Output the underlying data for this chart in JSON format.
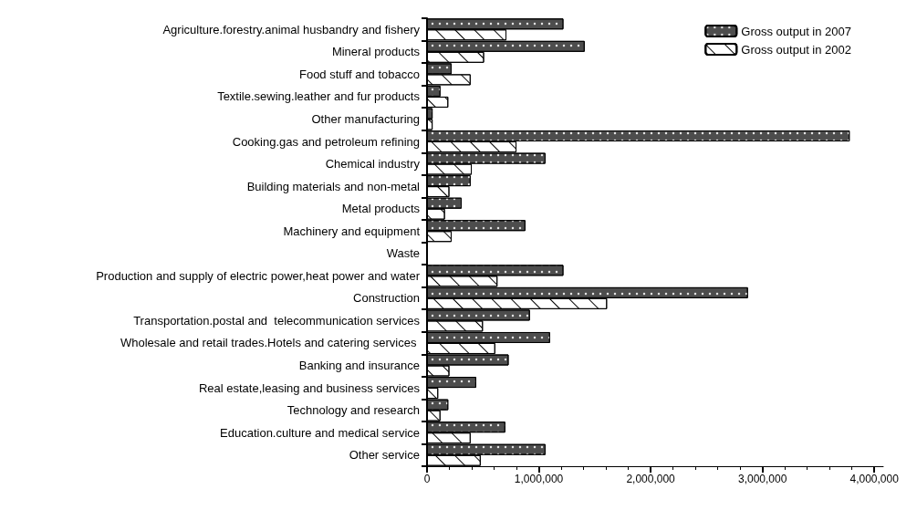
{
  "chart_data": {
    "type": "bar",
    "orientation": "horizontal",
    "categories": [
      "Agriculture.forestry.animal husbandry and fishery",
      "Mineral products",
      "Food stuff and tobacco",
      "Textile.sewing.leather and fur products",
      "Other manufacturing",
      "Cooking.gas and petroleum refining",
      "Chemical industry",
      "Building materials and non-metal",
      "Metal products",
      "Machinery and equipment",
      "Waste",
      "Production and supply of electric power,heat power and water",
      "Construction",
      "Transportation.postal and  telecommunication services",
      "Wholesale and retail trades.Hotels and catering services ",
      "Banking and insurance",
      "Real estate,leasing and business services",
      "Technology and research",
      "Education.culture and medical service",
      "Other service"
    ],
    "series": [
      {
        "name": "Gross output in 2007",
        "color": "#4d4d4d",
        "values": [
          1220000,
          1410000,
          220000,
          120000,
          50000,
          3780000,
          1060000,
          390000,
          310000,
          880000,
          0,
          1220000,
          2870000,
          920000,
          1100000,
          730000,
          440000,
          190000,
          700000,
          1060000
        ]
      },
      {
        "name": "Gross output in 2002",
        "color": "#ffffff",
        "values": [
          710000,
          510000,
          390000,
          190000,
          50000,
          800000,
          400000,
          200000,
          160000,
          220000,
          0,
          630000,
          1610000,
          500000,
          610000,
          200000,
          100000,
          120000,
          390000,
          480000
        ]
      }
    ],
    "xlim": [
      0,
      4080000
    ],
    "xticks": [
      0,
      {
        "value": 1000000,
        "label": "1,000,000"
      },
      {
        "value": 2000000,
        "label": "2,000,000"
      },
      {
        "value": 3000000,
        "label": "3,000,000"
      },
      {
        "value": 4000000,
        "label": "4,000,000"
      }
    ],
    "grid": false,
    "legend": "top right"
  }
}
